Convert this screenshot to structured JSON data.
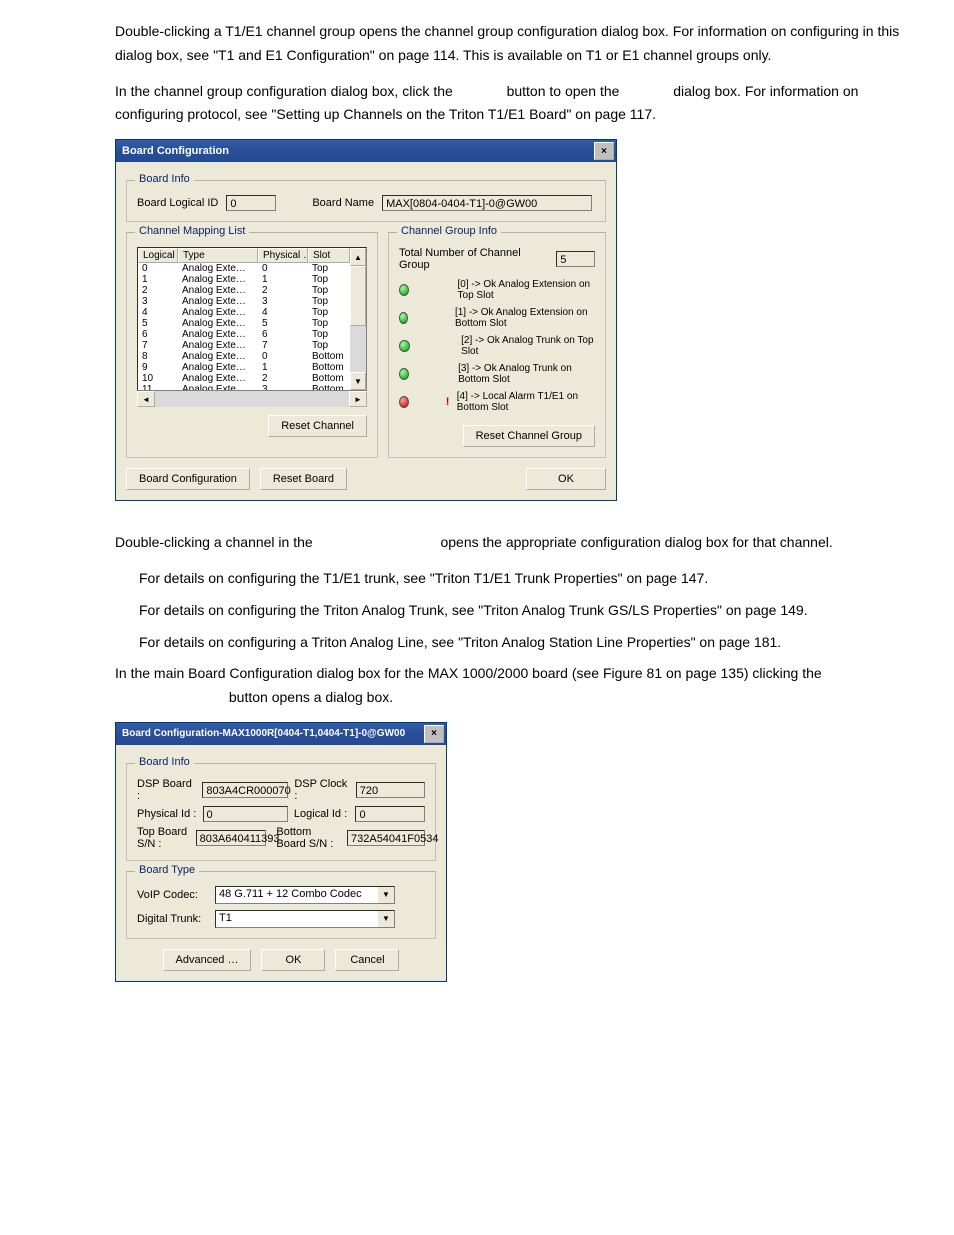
{
  "paragraphs": {
    "p1": "Double-clicking a T1/E1 channel group opens the channel group configuration dialog box. For information on configuring in this dialog box, see \"T1 and E1 Configuration\" on page 114. This is available on T1 or E1 channel groups only.",
    "p2a": "In the channel group configuration dialog box, click the ",
    "p2b": " button to open the ",
    "p2c": " dialog box. For information on configuring protocol, see \"Setting up Channels on the Triton T1/E1 Board\" on page 117.",
    "p3a": "Double-clicking a channel in the ",
    "p3b": " opens the appropriate configuration dialog box for that channel.",
    "b1": "For details on configuring the T1/E1 trunk, see \"Triton T1/E1 Trunk Properties\" on page 147.",
    "b2": "For details on configuring the Triton Analog Trunk, see \"Triton Analog Trunk GS/LS Properties\" on page 149.",
    "b3": "For details on configuring a Triton Analog Line, see \"Triton Analog Station Line Properties\" on page 181.",
    "p4a": "In the main Board Configuration dialog box for the MAX 1000/2000 board (see Figure 81 on page 135) clicking the ",
    "p4b": " button opens a dialog box."
  },
  "dialog1": {
    "title": "Board Configuration",
    "board_info": {
      "group_title": "Board Info",
      "logical_id_label": "Board Logical ID",
      "logical_id_value": "0",
      "board_name_label": "Board Name",
      "board_name_value": "MAX[0804-0404-T1]-0@GW00"
    },
    "channel_mapping": {
      "group_title": "Channel Mapping List",
      "columns": {
        "logical": "Logical …",
        "type": "Type",
        "physical": "Physical …",
        "slot": "Slot"
      },
      "rows": [
        {
          "logical": "0",
          "type": "Analog Exte…",
          "phys": "0",
          "slot": "Top"
        },
        {
          "logical": "1",
          "type": "Analog Exte…",
          "phys": "1",
          "slot": "Top"
        },
        {
          "logical": "2",
          "type": "Analog Exte…",
          "phys": "2",
          "slot": "Top"
        },
        {
          "logical": "3",
          "type": "Analog Exte…",
          "phys": "3",
          "slot": "Top"
        },
        {
          "logical": "4",
          "type": "Analog Exte…",
          "phys": "4",
          "slot": "Top"
        },
        {
          "logical": "5",
          "type": "Analog Exte…",
          "phys": "5",
          "slot": "Top"
        },
        {
          "logical": "6",
          "type": "Analog Exte…",
          "phys": "6",
          "slot": "Top"
        },
        {
          "logical": "7",
          "type": "Analog Exte…",
          "phys": "7",
          "slot": "Top"
        },
        {
          "logical": "8",
          "type": "Analog Exte…",
          "phys": "0",
          "slot": "Bottom"
        },
        {
          "logical": "9",
          "type": "Analog Exte…",
          "phys": "1",
          "slot": "Bottom"
        },
        {
          "logical": "10",
          "type": "Analog Exte…",
          "phys": "2",
          "slot": "Bottom"
        },
        {
          "logical": "11",
          "type": "Analog Exte…",
          "phys": "3",
          "slot": "Bottom"
        }
      ],
      "reset_channel": "Reset Channel"
    },
    "channel_group": {
      "group_title": "Channel Group Info",
      "total_label": "Total Number of Channel Group",
      "total_value": "5",
      "entries": [
        {
          "led": "green",
          "bang": "",
          "text": "[0] -> Ok  Analog Extension on Top Slot"
        },
        {
          "led": "green",
          "bang": "",
          "text": "[1] -> Ok  Analog Extension on Bottom Slot"
        },
        {
          "led": "green",
          "bang": "",
          "text": "[2] -> Ok  Analog Trunk on Top Slot"
        },
        {
          "led": "green",
          "bang": "",
          "text": "[3] -> Ok  Analog Trunk on Bottom Slot"
        },
        {
          "led": "red",
          "bang": "!",
          "text": "[4] -> Local Alarm  T1/E1 on Bottom Slot"
        }
      ],
      "reset_channel_group": "Reset Channel Group"
    },
    "board_config_btn": "Board Configuration",
    "reset_board_btn": "Reset Board",
    "ok_btn": "OK"
  },
  "dialog2": {
    "title": "Board Configuration-MAX1000R[0404-T1,0404-T1]-0@GW00",
    "board_info": {
      "group_title": "Board Info",
      "dsp_board_label": "DSP Board :",
      "dsp_board_value": "803A4CR000070",
      "dsp_clock_label": "DSP Clock :",
      "dsp_clock_value": "720",
      "physical_id_label": "Physical Id :",
      "physical_id_value": "0",
      "logical_id_label": "Logical Id :",
      "logical_id_value": "0",
      "top_sn_label": "Top Board S/N :",
      "top_sn_value": "803A640411393",
      "bottom_sn_label": "Bottom Board S/N :",
      "bottom_sn_value": "732A54041F0534"
    },
    "board_type": {
      "group_title": "Board Type",
      "voip_label": "VoIP Codec:",
      "voip_value": "48 G.711 + 12 Combo Codec",
      "digital_trunk_label": "Digital Trunk:",
      "digital_trunk_value": "T1"
    },
    "advanced_btn": "Advanced …",
    "ok_btn": "OK",
    "cancel_btn": "Cancel"
  },
  "colors": {
    "dialog_bg": "#ece9d8",
    "title_bg": "#0a246a",
    "led_green": "#00a000",
    "led_red": "#c00000"
  }
}
